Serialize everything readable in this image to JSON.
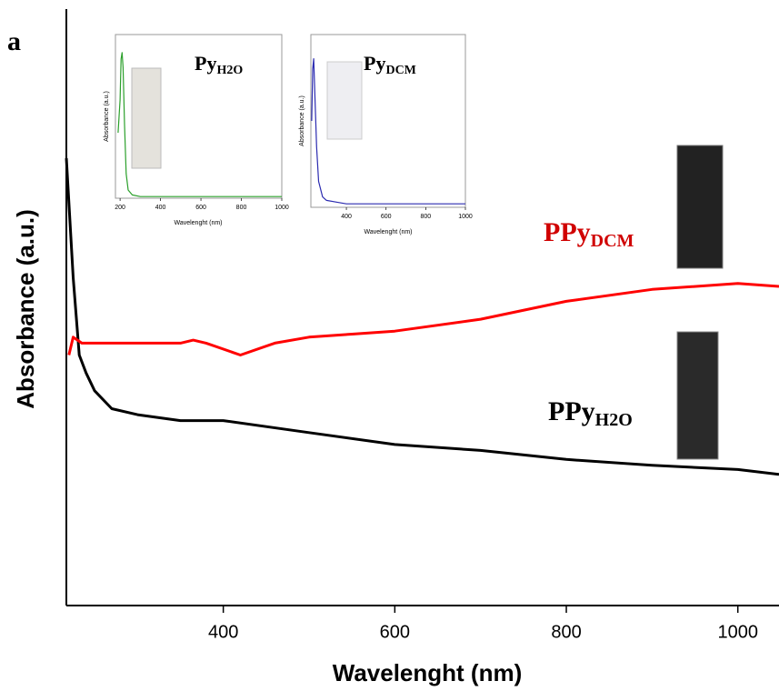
{
  "panel_label": "a",
  "chart_data": [
    {
      "type": "line",
      "x_label": "Wavelenght (nm)",
      "y_label": "Absorbance (a.u.)",
      "xlim": [
        217,
        1048
      ],
      "ylim": [
        0,
        1
      ],
      "xticks": [
        400,
        600,
        800,
        1000
      ],
      "annotations": [
        {
          "text": "PPy",
          "sub": "DCM",
          "color": "#d00000"
        },
        {
          "text": "PPy",
          "sub": "H2O",
          "color": "#000000"
        }
      ],
      "series": [
        {
          "color": "#000000",
          "x": [
            217,
            225,
            232,
            240,
            250,
            270,
            300,
            350,
            400,
            500,
            600,
            700,
            800,
            900,
            1000,
            1048
          ],
          "values": [
            0.75,
            0.55,
            0.42,
            0.39,
            0.36,
            0.33,
            0.32,
            0.31,
            0.31,
            0.29,
            0.27,
            0.26,
            0.245,
            0.235,
            0.228,
            0.22
          ]
        },
        {
          "color": "#ff0000",
          "x": [
            220,
            225,
            235,
            250,
            300,
            350,
            365,
            380,
            420,
            460,
            500,
            550,
            600,
            700,
            800,
            900,
            1000,
            1048
          ],
          "values": [
            0.42,
            0.45,
            0.44,
            0.44,
            0.44,
            0.44,
            0.445,
            0.44,
            0.42,
            0.44,
            0.45,
            0.455,
            0.46,
            0.48,
            0.51,
            0.53,
            0.54,
            0.535
          ]
        }
      ]
    },
    {
      "type": "line",
      "x_label": "Wavelenght (nm)",
      "y_label": "Absorbance (a.u.)",
      "xlim": [
        177,
        1000
      ],
      "ylim": [
        0,
        1
      ],
      "xticks": [
        200,
        400,
        600,
        800,
        1000
      ],
      "annotations": [
        {
          "text": "Py",
          "sub": "H2O",
          "color": "#000000"
        }
      ],
      "series": [
        {
          "color": "#2ca02c",
          "x": [
            190,
            200,
            205,
            210,
            215,
            222,
            230,
            240,
            260,
            300,
            400,
            600,
            800,
            1000
          ],
          "values": [
            0.4,
            0.6,
            0.85,
            0.89,
            0.8,
            0.45,
            0.15,
            0.05,
            0.02,
            0.01,
            0.01,
            0.01,
            0.01,
            0.01
          ]
        }
      ]
    },
    {
      "type": "line",
      "x_label": "Wavelenght (nm)",
      "y_label": "Absorbance (a.u.)",
      "xlim": [
        221,
        1000
      ],
      "ylim": [
        0,
        1
      ],
      "xticks": [
        400,
        600,
        800,
        1000
      ],
      "annotations": [
        {
          "text": "Py",
          "sub": "DCM",
          "color": "#000000"
        }
      ],
      "series": [
        {
          "color": "#2b2bb0",
          "x": [
            225,
            230,
            235,
            240,
            250,
            260,
            280,
            300,
            350,
            400,
            600,
            800,
            1000
          ],
          "values": [
            0.5,
            0.8,
            0.86,
            0.7,
            0.35,
            0.15,
            0.06,
            0.04,
            0.03,
            0.02,
            0.02,
            0.02,
            0.02
          ]
        }
      ]
    }
  ]
}
